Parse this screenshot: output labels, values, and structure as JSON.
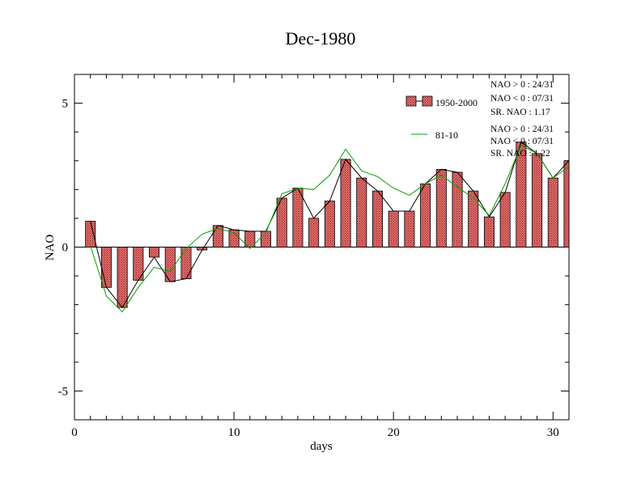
{
  "chart_data": {
    "type": "bar",
    "title": "Dec-1980",
    "xlabel": "days",
    "ylabel": "NAO",
    "xlim": [
      0,
      31
    ],
    "ylim": [
      -6,
      6
    ],
    "x_ticks": [
      0,
      10,
      20,
      30
    ],
    "y_ticks": [
      -5,
      0,
      5
    ],
    "x": [
      1,
      2,
      3,
      4,
      5,
      6,
      7,
      8,
      9,
      10,
      11,
      12,
      13,
      14,
      15,
      16,
      17,
      18,
      19,
      20,
      21,
      22,
      23,
      24,
      25,
      26,
      27,
      28,
      29,
      30,
      31
    ],
    "series": [
      {
        "name": "1950-2000",
        "kind": "bar+line",
        "bar_fill": "#e06c6c",
        "line_color": "#000000",
        "values": [
          0.9,
          -1.4,
          -2.1,
          -1.15,
          -0.35,
          -1.2,
          -1.1,
          -0.1,
          0.75,
          0.6,
          0.55,
          0.55,
          1.7,
          2.05,
          1.0,
          1.6,
          3.05,
          2.4,
          1.95,
          1.25,
          1.25,
          2.2,
          2.7,
          2.6,
          1.95,
          1.05,
          1.9,
          3.65,
          3.25,
          2.4,
          3.0
        ],
        "stats": [
          "NAO > 0 : 24/31",
          "NAO < 0 : 07/31",
          "SR. NAO :  1.17"
        ]
      },
      {
        "name": "81-10",
        "kind": "line",
        "line_color": "#00a000",
        "values": [
          0.05,
          -1.7,
          -2.25,
          -1.4,
          -0.7,
          -0.85,
          -0.05,
          0.45,
          0.65,
          0.5,
          -0.05,
          0.5,
          1.85,
          2.05,
          2.0,
          2.5,
          3.4,
          2.65,
          2.45,
          2.05,
          1.8,
          2.2,
          2.5,
          2.1,
          1.7,
          1.1,
          2.2,
          3.55,
          3.25,
          2.4,
          2.8
        ],
        "stats": [
          "NAO > 0 : 24/31",
          "NAO < 0 : 07/31",
          "SR. NAO :  1.22"
        ]
      }
    ],
    "legend_position": "top-right"
  }
}
